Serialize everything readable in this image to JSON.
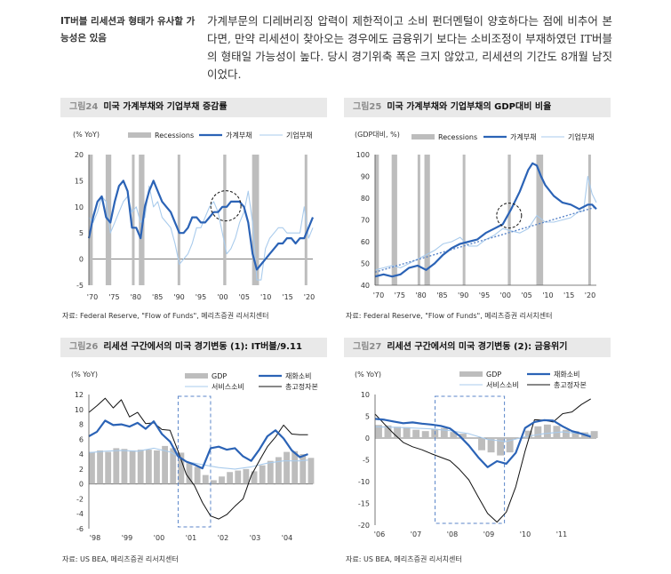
{
  "side_note": "IT버블 리세션과 형태가 유사할 가능성은 있음",
  "intro": "가계부문의 디레버리징 압력이 제한적이고 소비 펀더멘털이 양호하다는 점에 비추어 본다면, 만약 리세션이 찾아오는 경우에도 금융위기 보다는 소비조정이 부재하였던 IT버블의 형태일 가능성이 높다. 당시 경기위축 폭은 크지 않았고, 리세션의 기간도 8개월 남짓이었다.",
  "colors": {
    "dark_blue": "#2b63b6",
    "light_blue": "#a9cbec",
    "black": "#111111",
    "gray_bar": "#bdbdbd",
    "dash": "#5b86c9"
  },
  "charts": [
    {
      "fig_num": "그림24",
      "fig_title": "미국 가계부채와 기업부채 증감률",
      "source": "자료: Federal Reserve, \"Flow of Funds\", 메리츠증권 리서치센터",
      "unit": "(% YoY)",
      "legend": [
        "Recessions",
        "가계부채",
        "기업부채"
      ],
      "chart_data": {
        "type": "line",
        "ylim": [
          -5,
          20
        ],
        "yticks": [
          "20",
          "15",
          "10",
          "5",
          "0",
          "-5"
        ],
        "xticks": [
          "'70",
          "'75",
          "'80",
          "'85",
          "'90",
          "'95",
          "'00",
          "'05",
          "'10",
          "'15",
          "'20"
        ],
        "x_range": [
          1970,
          2022
        ],
        "recessions": [
          [
            1969.9,
            1970.9
          ],
          [
            1973.9,
            1975.2
          ],
          [
            1980.0,
            1980.6
          ],
          [
            1981.6,
            1982.9
          ],
          [
            1990.6,
            1991.2
          ],
          [
            2001.2,
            2001.9
          ],
          [
            2007.9,
            2009.5
          ],
          [
            2020.1,
            2020.4
          ]
        ],
        "series": [
          {
            "name": "가계부채",
            "style": "dark",
            "x": [
              1970,
              1971,
              1972,
              1973,
              1974,
              1975,
              1976,
              1977,
              1978,
              1979,
              1980,
              1981,
              1982,
              1983,
              1984,
              1985,
              1986,
              1987,
              1988,
              1989,
              1990,
              1991,
              1992,
              1993,
              1994,
              1995,
              1996,
              1997,
              1998,
              1999,
              2000,
              2001,
              2002,
              2003,
              2004,
              2005,
              2006,
              2007,
              2008,
              2009,
              2010,
              2011,
              2012,
              2013,
              2014,
              2015,
              2016,
              2017,
              2018,
              2019,
              2020,
              2021,
              2022
            ],
            "y": [
              4,
              8,
              11,
              12,
              8,
              7,
              11,
              14,
              15,
              13,
              6,
              6,
              4,
              10,
              13,
              15,
              13,
              11,
              10,
              9,
              7,
              5,
              5,
              6,
              8,
              8,
              7,
              7,
              8,
              9,
              9,
              10,
              10,
              11,
              11,
              11,
              10,
              7,
              1,
              -2,
              -1,
              0,
              1,
              2,
              3,
              3,
              4,
              4,
              3,
              4,
              4,
              6,
              8
            ]
          },
          {
            "name": "기업부채",
            "style": "light",
            "x": [
              1970,
              1971,
              1972,
              1973,
              1974,
              1975,
              1976,
              1977,
              1978,
              1979,
              1980,
              1981,
              1982,
              1983,
              1984,
              1985,
              1986,
              1987,
              1988,
              1989,
              1990,
              1991,
              1992,
              1993,
              1994,
              1995,
              1996,
              1997,
              1998,
              1999,
              2000,
              2001,
              2002,
              2003,
              2004,
              2005,
              2006,
              2007,
              2008,
              2009,
              2010,
              2011,
              2012,
              2013,
              2014,
              2015,
              2016,
              2017,
              2018,
              2019,
              2020,
              2021,
              2022
            ],
            "y": [
              8,
              7,
              9,
              12,
              11,
              5,
              7,
              9,
              11,
              12,
              9,
              10,
              7,
              8,
              14,
              10,
              11,
              8,
              7,
              6,
              3,
              -1,
              0,
              1,
              3,
              6,
              6,
              8,
              10,
              11,
              9,
              5,
              1,
              2,
              4,
              7,
              9,
              13,
              7,
              -4,
              -4,
              2,
              4,
              5,
              6,
              6,
              5,
              5,
              5,
              5,
              10,
              4,
              6
            ]
          }
        ]
      }
    },
    {
      "fig_num": "그림25",
      "fig_title": "미국 가계부채와 기업부채의 GDP대비 비율",
      "source": "자료: Federal Reserve, \"Flow of Funds\", 메리츠증권 리서치센터",
      "unit": "(GDP대비, %)",
      "legend": [
        "Recessions",
        "가계부채",
        "기업부채"
      ],
      "chart_data": {
        "type": "line",
        "ylim": [
          40,
          100
        ],
        "yticks": [
          "100",
          "90",
          "80",
          "70",
          "60",
          "50",
          "40"
        ],
        "xticks": [
          "'70",
          "'75",
          "'80",
          "'85",
          "'90",
          "'95",
          "'00",
          "'05",
          "'10",
          "'15",
          "'20"
        ],
        "x_range": [
          1970,
          2022
        ],
        "recessions": [
          [
            1969.9,
            1970.9
          ],
          [
            1973.9,
            1975.2
          ],
          [
            1980.0,
            1980.6
          ],
          [
            1981.6,
            1982.9
          ],
          [
            1990.6,
            1991.2
          ],
          [
            2001.2,
            2001.9
          ],
          [
            2007.9,
            2009.5
          ],
          [
            2020.1,
            2020.4
          ]
        ],
        "series": [
          {
            "name": "가계부채",
            "style": "dark",
            "x": [
              1970,
              1972,
              1974,
              1976,
              1978,
              1980,
              1982,
              1984,
              1986,
              1988,
              1990,
              1992,
              1994,
              1996,
              1998,
              2000,
              2002,
              2004,
              2006,
              2007,
              2008,
              2009,
              2010,
              2012,
              2014,
              2016,
              2018,
              2020,
              2021,
              2022
            ],
            "y": [
              44,
              45,
              44,
              45,
              48,
              49,
              47,
              50,
              54,
              57,
              59,
              60,
              61,
              64,
              66,
              68,
              75,
              83,
              93,
              96,
              95,
              90,
              86,
              81,
              78,
              77,
              75,
              77,
              77,
              75
            ]
          },
          {
            "name": "기업부채",
            "style": "light",
            "x": [
              1970,
              1972,
              1974,
              1976,
              1978,
              1980,
              1982,
              1984,
              1986,
              1988,
              1990,
              1992,
              1994,
              1996,
              1998,
              2000,
              2002,
              2004,
              2006,
              2008,
              2010,
              2012,
              2014,
              2016,
              2018,
              2019,
              2020,
              2021,
              2022
            ],
            "y": [
              47,
              48,
              49,
              48,
              50,
              52,
              54,
              56,
              59,
              60,
              62,
              58,
              58,
              61,
              63,
              66,
              65,
              64,
              66,
              72,
              69,
              69,
              70,
              71,
              74,
              74,
              90,
              82,
              78
            ]
          },
          {
            "name": "",
            "style": "dotted",
            "x": [
              1970,
              2022
            ],
            "y": [
              46,
              76
            ]
          }
        ]
      }
    },
    {
      "fig_num": "그림26",
      "fig_title": "리세션 구간에서의 미국 경기변동 (1): IT버블/9.11",
      "source": "자료: US BEA, 메리츠증권 리서치센터",
      "unit": "(% YoY)",
      "legend": [
        "GDP",
        "재화소비",
        "서비스소비",
        "총고정자본"
      ],
      "chart_data": {
        "type": "bar",
        "ylim": [
          -6,
          12
        ],
        "yticks": [
          "12",
          "10",
          "8",
          "6",
          "4",
          "2",
          "0",
          "-2",
          "-4",
          "-6"
        ],
        "xticks": [
          "'98",
          "'99",
          "'00",
          "'01",
          "'02",
          "'03",
          "'04"
        ],
        "x_range": [
          1998,
          2004.9
        ],
        "shade": [
          2000.75,
          2001.75
        ],
        "bars": {
          "name": "GDP",
          "x_start": 1998,
          "step": 0.25,
          "values": [
            4.3,
            4.5,
            4.3,
            4.8,
            4.7,
            4.5,
            4.6,
            4.6,
            4.5,
            5.1,
            4.8,
            4.2,
            2.8,
            2.3,
            1.2,
            0.5,
            1.0,
            1.6,
            1.8,
            2.0,
            1.7,
            2.5,
            3.1,
            3.6,
            4.3,
            4.4,
            4.0,
            3.5
          ]
        },
        "series": [
          {
            "name": "재화소비",
            "style": "dark",
            "x": [
              1998,
              1998.25,
              1998.5,
              1998.75,
              1999,
              1999.25,
              1999.5,
              1999.75,
              2000,
              2000.25,
              2000.5,
              2000.75,
              2001,
              2001.25,
              2001.5,
              2001.75,
              2002,
              2002.25,
              2002.5,
              2002.75,
              2003,
              2003.25,
              2003.5,
              2003.75,
              2004,
              2004.25,
              2004.5,
              2004.75
            ],
            "y": [
              6.4,
              7.0,
              8.5,
              7.9,
              8.0,
              7.7,
              8.2,
              7.4,
              8.4,
              6.7,
              5.7,
              3.7,
              3.0,
              2.6,
              2.1,
              4.8,
              5.0,
              4.6,
              4.8,
              3.7,
              3.1,
              4.6,
              6.4,
              7.2,
              6.1,
              4.5,
              3.6,
              4.0
            ]
          },
          {
            "name": "서비스소비",
            "style": "light",
            "x": [
              1998,
              1998.5,
              1999,
              1999.5,
              2000,
              2000.5,
              2000.75,
              2001,
              2001.5,
              2002,
              2002.5,
              2003,
              2003.5,
              2004,
              2004.5,
              2004.75
            ],
            "y": [
              4.2,
              4.4,
              4.5,
              4.4,
              4.8,
              4.3,
              3.7,
              3.0,
              2.6,
              2.2,
              2.0,
              2.3,
              2.8,
              3.1,
              3.1,
              3.2
            ]
          },
          {
            "name": "총고정자본",
            "style": "black",
            "x": [
              1998,
              1998.25,
              1998.5,
              1998.75,
              1999,
              1999.25,
              1999.5,
              1999.75,
              2000,
              2000.25,
              2000.5,
              2000.75,
              2001,
              2001.25,
              2001.5,
              2001.75,
              2002,
              2002.25,
              2002.5,
              2002.75,
              2003,
              2003.25,
              2003.5,
              2003.75,
              2004,
              2004.25,
              2004.5,
              2004.75
            ],
            "y": [
              9.6,
              10.5,
              11.5,
              10.2,
              11.3,
              9.0,
              9.6,
              8.1,
              8.2,
              7.3,
              7.2,
              4.4,
              1.3,
              -0.2,
              -2.5,
              -4.3,
              -4.7,
              -4.1,
              -3.0,
              -2.0,
              1.1,
              3.1,
              5.0,
              6.3,
              7.9,
              6.7,
              6.6,
              6.6
            ]
          }
        ]
      }
    },
    {
      "fig_num": "그림27",
      "fig_title": "리세션 구간에서의 미국 경기변동 (2): 금융위기",
      "source": "자료: US BEA, 메리츠증권 리서치센터",
      "unit": "(% YoY)",
      "legend": [
        "GDP",
        "재화소비",
        "서비스소비",
        "총고정자본"
      ],
      "chart_data": {
        "type": "bar",
        "ylim": [
          -20,
          10
        ],
        "yticks": [
          "10",
          "5",
          "0",
          "-5",
          "-10",
          "-15",
          "-20"
        ],
        "xticks": [
          "'06",
          "'07",
          "'08",
          "'09",
          "'10",
          "'11"
        ],
        "x_range": [
          2006,
          2011.9
        ],
        "shade": [
          2007.6,
          2009.45
        ],
        "bars": {
          "name": "GDP",
          "x_start": 2006,
          "step": 0.25,
          "values": [
            3.0,
            2.9,
            2.6,
            2.5,
            1.9,
            1.6,
            2.1,
            2.3,
            1.4,
            1.0,
            -0.2,
            -2.8,
            -3.3,
            -4.0,
            -3.3,
            -0.2,
            1.7,
            2.7,
            3.1,
            2.8,
            1.9,
            1.6,
            1.3,
            1.6
          ]
        },
        "series": [
          {
            "name": "재화소비",
            "style": "dark",
            "x": [
              2006,
              2006.25,
              2006.5,
              2006.75,
              2007,
              2007.25,
              2007.5,
              2007.75,
              2008,
              2008.25,
              2008.5,
              2008.75,
              2009,
              2009.25,
              2009.5,
              2009.75,
              2010,
              2010.25,
              2010.5,
              2010.75,
              2011,
              2011.25,
              2011.5,
              2011.75
            ],
            "y": [
              4.4,
              4.2,
              3.8,
              3.4,
              3.6,
              3.3,
              3.1,
              2.8,
              2.2,
              0.5,
              -1.7,
              -4.4,
              -6.7,
              -5.3,
              -5.9,
              -3.4,
              2.3,
              3.7,
              4.1,
              4.0,
              2.7,
              1.6,
              1.0,
              0.3
            ]
          },
          {
            "name": "서비스소비",
            "style": "light",
            "x": [
              2006,
              2006.5,
              2007,
              2007.5,
              2008,
              2008.5,
              2009,
              2009.5,
              2010,
              2010.5,
              2011,
              2011.5,
              2011.75
            ],
            "y": [
              2.6,
              2.5,
              2.3,
              2.1,
              1.7,
              1.0,
              -0.3,
              -0.8,
              0.3,
              1.0,
              1.4,
              1.0,
              0.8
            ]
          },
          {
            "name": "총고정자본",
            "style": "black",
            "x": [
              2006,
              2006.25,
              2006.5,
              2006.75,
              2007,
              2007.25,
              2007.5,
              2007.75,
              2008,
              2008.25,
              2008.5,
              2008.75,
              2009,
              2009.25,
              2009.5,
              2009.75,
              2010,
              2010.25,
              2010.5,
              2010.75,
              2011,
              2011.25,
              2011.5,
              2011.75
            ],
            "y": [
              5.5,
              3.2,
              1.0,
              -1.0,
              -2.0,
              -2.7,
              -3.6,
              -4.4,
              -5.2,
              -7.2,
              -9.6,
              -13.5,
              -17.3,
              -19.3,
              -17.0,
              -11.2,
              -3.0,
              4.2,
              4.1,
              3.7,
              5.6,
              6.0,
              7.7,
              9.0
            ]
          }
        ]
      }
    }
  ]
}
